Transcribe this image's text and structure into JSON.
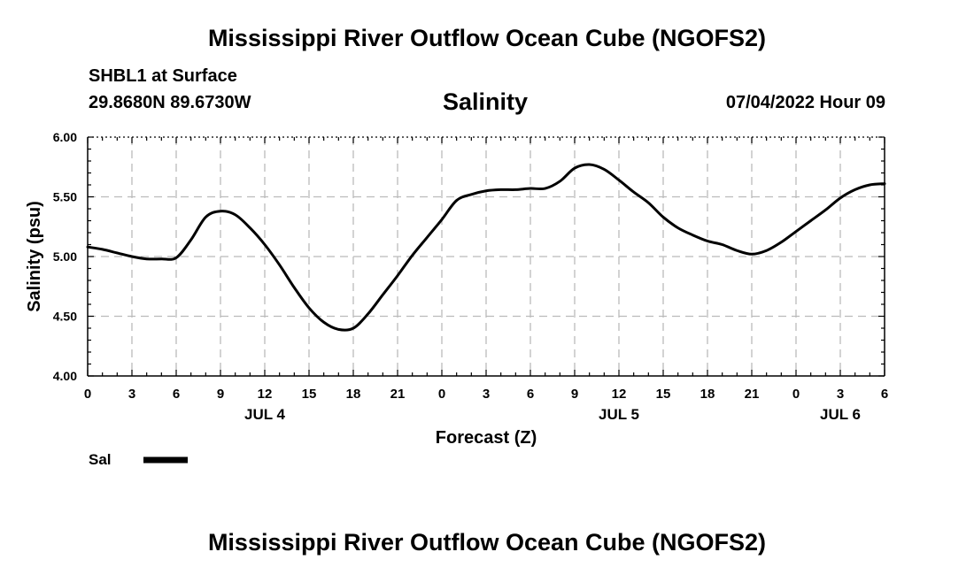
{
  "header": {
    "title": "Mississippi River Outflow Ocean Cube (NGOFS2)",
    "station": "SHBL1 at Surface",
    "coordinates": "29.8680N  89.6730W",
    "datetime": "07/04/2022 Hour 09"
  },
  "footer": {
    "title": "Mississippi River Outflow Ocean Cube (NGOFS2)"
  },
  "chart_data": {
    "type": "line",
    "title": "Salinity",
    "xlabel": "Forecast (Z)",
    "ylabel": "Salinity (psu)",
    "xlim": [
      0,
      54
    ],
    "ylim": [
      4.0,
      6.0
    ],
    "x_ticks": [
      0,
      3,
      6,
      9,
      12,
      15,
      18,
      21,
      24,
      27,
      30,
      33,
      36,
      39,
      42,
      45,
      48,
      51,
      54
    ],
    "x_tick_labels": [
      "0",
      "3",
      "6",
      "9",
      "12",
      "15",
      "18",
      "21",
      "0",
      "3",
      "6",
      "9",
      "12",
      "15",
      "18",
      "21",
      "0",
      "3",
      "6"
    ],
    "day_labels": [
      {
        "x": 12,
        "label": "JUL 4"
      },
      {
        "x": 36,
        "label": "JUL 5"
      },
      {
        "x": 51,
        "label": "JUL 6"
      }
    ],
    "y_ticks": [
      4.0,
      4.5,
      5.0,
      5.5,
      6.0
    ],
    "y_tick_labels": [
      "4.00",
      "4.50",
      "5.00",
      "5.50",
      "6.00"
    ],
    "grid": true,
    "legend": "bottom-left",
    "series": [
      {
        "name": "Sal",
        "color": "#000000",
        "x": [
          0,
          1,
          2,
          3,
          4,
          5,
          6,
          7,
          8,
          9,
          10,
          11,
          12,
          13,
          14,
          15,
          16,
          17,
          18,
          19,
          20,
          21,
          22,
          23,
          24,
          25,
          26,
          27,
          28,
          29,
          30,
          31,
          32,
          33,
          34,
          35,
          36,
          37,
          38,
          39,
          40,
          41,
          42,
          43,
          44,
          45,
          46,
          47,
          48,
          49,
          50,
          51,
          52,
          53,
          54
        ],
        "values": [
          5.08,
          5.06,
          5.03,
          5.0,
          4.98,
          4.98,
          4.99,
          5.14,
          5.33,
          5.38,
          5.35,
          5.24,
          5.1,
          4.93,
          4.74,
          4.57,
          4.45,
          4.39,
          4.4,
          4.52,
          4.68,
          4.84,
          5.01,
          5.16,
          5.31,
          5.47,
          5.52,
          5.55,
          5.56,
          5.56,
          5.57,
          5.57,
          5.63,
          5.74,
          5.77,
          5.73,
          5.64,
          5.54,
          5.45,
          5.33,
          5.24,
          5.18,
          5.13,
          5.1,
          5.05,
          5.02,
          5.05,
          5.12,
          5.21,
          5.3,
          5.39,
          5.49,
          5.56,
          5.6,
          5.61
        ]
      }
    ]
  }
}
